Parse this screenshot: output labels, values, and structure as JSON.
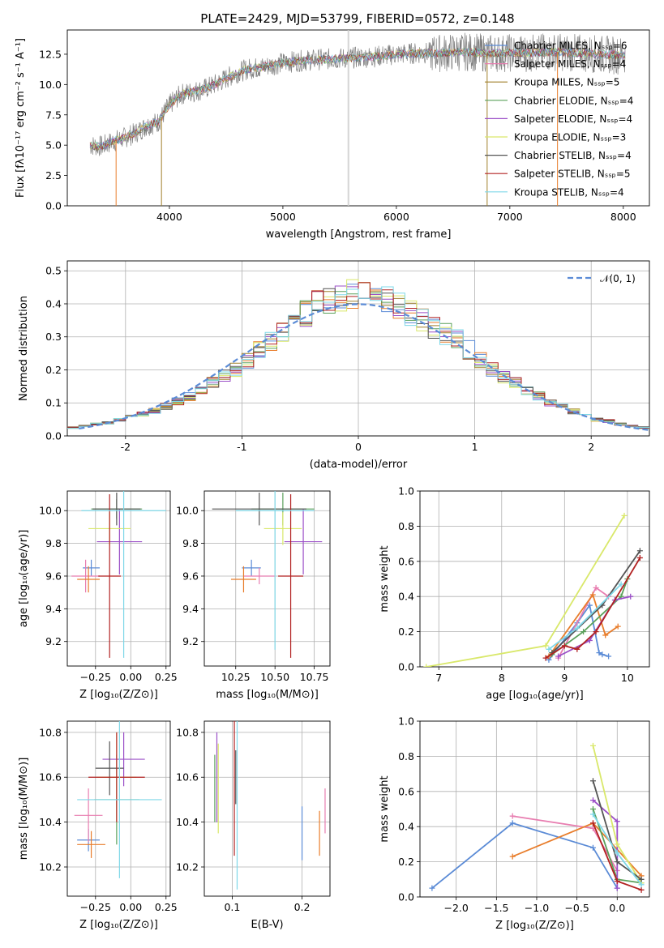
{
  "figure": {
    "title": "PLATE=2429, MJD=53799, FIBERID=0572, z=0.148"
  },
  "colors": {
    "c0": "#5b8bd6",
    "c1": "#e87d2b",
    "c2": "#a0802c",
    "c3": "#5aa05a",
    "c4": "#9b4fc7",
    "c5": "#d9e86a",
    "c6": "#555555",
    "c7": "#b22222",
    "c8": "#7fd8e8",
    "salpeter_miles": "#e87db0",
    "gauss": "#5b8bd6"
  },
  "chart_data": [
    {
      "type": "line",
      "name": "spectrum",
      "xlabel": "wavelength [Angstrom, rest frame]",
      "ylabel": "Flux [fλ10⁻¹⁷ erg cm⁻² s⁻¹ A⁻¹]",
      "xlim": [
        3100,
        8230
      ],
      "ylim": [
        0,
        14.5
      ],
      "xticks": [
        4000,
        5000,
        6000,
        7000,
        8000
      ],
      "yticks": [
        0.0,
        2.5,
        5.0,
        7.5,
        10.0,
        12.5
      ],
      "legend_position": "top-right",
      "data_envelope": {
        "x": [
          3300,
          3400,
          3500,
          3600,
          3700,
          3800,
          3900,
          4000,
          4100,
          4200,
          4300,
          4400,
          4500,
          4600,
          4700,
          4800,
          4900,
          5000,
          5200,
          5400,
          5600,
          5800,
          6000,
          6200,
          6400,
          6600,
          6800,
          7000,
          7200,
          7400,
          7600,
          7800,
          8000
        ],
        "y": [
          5.0,
          4.9,
          5.3,
          5.6,
          6.0,
          6.6,
          6.9,
          8.3,
          9.2,
          9.4,
          9.6,
          10.0,
          10.5,
          11.0,
          11.3,
          11.4,
          11.6,
          11.8,
          12.0,
          12.1,
          12.2,
          12.3,
          12.5,
          12.6,
          12.6,
          12.7,
          12.6,
          12.6,
          12.6,
          12.7,
          12.6,
          12.5,
          12.4
        ]
      },
      "series": [
        {
          "name": "Chabrier MILES, N_SSP=6",
          "color": "#5b8bd6"
        },
        {
          "name": "Salpeter MILES, N_SSP=4",
          "color": "#e87db0"
        },
        {
          "name": "Kroupa MILES, N_SSP=5",
          "color": "#a0802c"
        },
        {
          "name": "Chabrier ELODIE, N_SSP=4",
          "color": "#5aa05a"
        },
        {
          "name": "Salpeter ELODIE, N_SSP=4",
          "color": "#9b4fc7"
        },
        {
          "name": "Kroupa ELODIE, N_SSP=3",
          "color": "#d9e86a"
        },
        {
          "name": "Chabrier STELIB, N_SSP=4",
          "color": "#555555"
        },
        {
          "name": "Salpeter STELIB, N_SSP=5",
          "color": "#b22222"
        },
        {
          "name": "Kroupa STELIB, N_SSP=4",
          "color": "#7fd8e8"
        }
      ]
    },
    {
      "type": "line",
      "name": "residual-histogram",
      "xlabel": "(data-model)/error",
      "ylabel": "Normed distribution",
      "xlim": [
        -2.5,
        2.5
      ],
      "ylim": [
        0,
        0.53
      ],
      "xticks": [
        -2,
        -1,
        0,
        1,
        2
      ],
      "yticks": [
        0.0,
        0.1,
        0.2,
        0.3,
        0.4,
        0.5
      ],
      "grid": true,
      "legend_position": "top-right",
      "gauss_label": "𝒩(0, 1)",
      "bins": [
        -2.5,
        -2.4,
        -2.3,
        -2.2,
        -2.1,
        -2.0,
        -1.9,
        -1.8,
        -1.7,
        -1.6,
        -1.5,
        -1.4,
        -1.3,
        -1.2,
        -1.1,
        -1.0,
        -0.9,
        -0.8,
        -0.7,
        -0.6,
        -0.5,
        -0.4,
        -0.3,
        -0.2,
        -0.1,
        0.0,
        0.1,
        0.2,
        0.3,
        0.4,
        0.5,
        0.6,
        0.7,
        0.8,
        0.9,
        1.0,
        1.1,
        1.2,
        1.3,
        1.4,
        1.5,
        1.6,
        1.7,
        1.8,
        1.9,
        2.0,
        2.1,
        2.2,
        2.3,
        2.4
      ],
      "hist_envelope": [
        0.025,
        0.03,
        0.035,
        0.04,
        0.05,
        0.06,
        0.065,
        0.075,
        0.09,
        0.105,
        0.12,
        0.14,
        0.16,
        0.18,
        0.2,
        0.23,
        0.26,
        0.29,
        0.31,
        0.34,
        0.37,
        0.4,
        0.41,
        0.42,
        0.43,
        0.43,
        0.42,
        0.41,
        0.39,
        0.37,
        0.35,
        0.33,
        0.31,
        0.29,
        0.26,
        0.23,
        0.2,
        0.18,
        0.16,
        0.14,
        0.12,
        0.1,
        0.09,
        0.075,
        0.06,
        0.05,
        0.045,
        0.035,
        0.03,
        0.025
      ]
    },
    {
      "type": "scatter",
      "name": "age-vs-Z",
      "xlabel": "Z [log₁₀(Z/Z⊙)]",
      "ylabel": "age  [log₁₀(age/yr)]",
      "xlim": [
        -0.45,
        0.28
      ],
      "ylim": [
        9.05,
        10.12
      ],
      "xticks": [
        -0.25,
        0.0,
        0.25
      ],
      "xticklabels": [
        "−0.25",
        "0.00",
        "0.25"
      ],
      "yticks": [
        9.2,
        9.4,
        9.6,
        9.8,
        10.0
      ],
      "grid": true,
      "points": [
        {
          "x": -0.28,
          "y": 9.65,
          "xerr": 0.06,
          "yerr": 0.05,
          "color": "#5b8bd6"
        },
        {
          "x": -0.32,
          "y": 9.6,
          "xerr": 0.1,
          "yerr": 0.1,
          "color": "#e87db0"
        },
        {
          "x": -0.3,
          "y": 9.58,
          "xerr": 0.08,
          "yerr": 0.08,
          "color": "#e87d2b"
        },
        {
          "x": -0.1,
          "y": 10.01,
          "xerr": 0.18,
          "yerr": 0.06,
          "color": "#5aa05a"
        },
        {
          "x": -0.08,
          "y": 9.81,
          "xerr": 0.16,
          "yerr": 0.2,
          "color": "#9b4fc7"
        },
        {
          "x": -0.15,
          "y": 9.89,
          "xerr": 0.15,
          "yerr": 0.1,
          "color": "#d9e86a"
        },
        {
          "x": -0.1,
          "y": 10.01,
          "xerr": 0.17,
          "yerr": 0.1,
          "color": "#555555"
        },
        {
          "x": -0.15,
          "y": 9.6,
          "xerr": 0.08,
          "yerr": 0.5,
          "color": "#b22222"
        },
        {
          "x": -0.05,
          "y": 10.0,
          "xerr": 0.3,
          "yerr": 0.9,
          "color": "#7fd8e8"
        }
      ]
    },
    {
      "type": "scatter",
      "name": "age-vs-mass",
      "xlabel": "mass [log₁₀(M/M⊙)]",
      "ylabel": "",
      "xlim": [
        10.05,
        10.85
      ],
      "ylim": [
        9.05,
        10.12
      ],
      "xticks": [
        10.25,
        10.5,
        10.75
      ],
      "xticklabels": [
        "10.25",
        "10.50",
        "10.75"
      ],
      "yticks": [
        9.2,
        9.4,
        9.6,
        9.8,
        10.0
      ],
      "grid": true,
      "points": [
        {
          "x": 10.35,
          "y": 9.65,
          "xerr": 0.06,
          "yerr": 0.05,
          "color": "#5b8bd6"
        },
        {
          "x": 10.4,
          "y": 9.6,
          "xerr": 0.1,
          "yerr": 0.05,
          "color": "#e87db0"
        },
        {
          "x": 10.3,
          "y": 9.58,
          "xerr": 0.08,
          "yerr": 0.08,
          "color": "#e87d2b"
        },
        {
          "x": 10.55,
          "y": 10.01,
          "xerr": 0.2,
          "yerr": 0.1,
          "color": "#5aa05a"
        },
        {
          "x": 10.68,
          "y": 9.81,
          "xerr": 0.12,
          "yerr": 0.2,
          "color": "#9b4fc7"
        },
        {
          "x": 10.55,
          "y": 9.89,
          "xerr": 0.12,
          "yerr": 0.1,
          "color": "#d9e86a"
        },
        {
          "x": 10.4,
          "y": 10.01,
          "xerr": 0.3,
          "yerr": 0.1,
          "color": "#555555"
        },
        {
          "x": 10.6,
          "y": 9.6,
          "xerr": 0.08,
          "yerr": 0.5,
          "color": "#b22222"
        },
        {
          "x": 10.5,
          "y": 10.0,
          "xerr": 0.25,
          "yerr": 0.85,
          "color": "#7fd8e8"
        }
      ]
    },
    {
      "type": "line",
      "name": "mass-weight-vs-age",
      "xlabel": "age  [log₁₀(age/yr)]",
      "ylabel": "mass weight",
      "xlim": [
        6.7,
        10.35
      ],
      "ylim": [
        0,
        1.0
      ],
      "xticks": [
        7,
        8,
        9,
        10
      ],
      "yticks": [
        0.0,
        0.2,
        0.4,
        0.6,
        0.8,
        1.0
      ],
      "grid": true,
      "series": [
        {
          "color": "#5b8bd6",
          "x": [
            8.75,
            9.2,
            9.4,
            9.55,
            9.6,
            9.7
          ],
          "y": [
            0.04,
            0.25,
            0.35,
            0.08,
            0.07,
            0.06
          ]
        },
        {
          "color": "#e87db0",
          "x": [
            8.9,
            9.5,
            9.7
          ],
          "y": [
            0.05,
            0.45,
            0.4
          ]
        },
        {
          "color": "#e87d2b",
          "x": [
            8.75,
            9.45,
            9.65,
            9.85
          ],
          "y": [
            0.06,
            0.41,
            0.18,
            0.23
          ]
        },
        {
          "color": "#5aa05a",
          "x": [
            8.8,
            9.3,
            9.9,
            10.0
          ],
          "y": [
            0.07,
            0.2,
            0.4,
            0.5
          ]
        },
        {
          "color": "#9b4fc7",
          "x": [
            8.9,
            9.4,
            9.8,
            10.05
          ],
          "y": [
            0.06,
            0.15,
            0.38,
            0.4
          ]
        },
        {
          "color": "#d9e86a",
          "x": [
            6.8,
            8.7,
            9.95
          ],
          "y": [
            0.0,
            0.12,
            0.86
          ]
        },
        {
          "color": "#555555",
          "x": [
            8.8,
            9.6,
            10.2
          ],
          "y": [
            0.08,
            0.35,
            0.66
          ]
        },
        {
          "color": "#b22222",
          "x": [
            8.7,
            9.0,
            9.2,
            9.5,
            10.2
          ],
          "y": [
            0.05,
            0.12,
            0.1,
            0.2,
            0.62
          ]
        },
        {
          "color": "#7fd8e8",
          "x": [
            8.75,
            9.2,
            9.9
          ],
          "y": [
            0.1,
            0.22,
            0.47
          ]
        }
      ]
    },
    {
      "type": "scatter",
      "name": "mass-vs-Z",
      "xlabel": "Z [log₁₀(Z/Z⊙)]",
      "ylabel": "mass [log₁₀(M/M⊙)]",
      "xlim": [
        -0.45,
        0.28
      ],
      "ylim": [
        10.07,
        10.85
      ],
      "xticks": [
        -0.25,
        0.0,
        0.25
      ],
      "xticklabels": [
        "−0.25",
        "0.00",
        "0.25"
      ],
      "yticks": [
        10.2,
        10.4,
        10.6,
        10.8
      ],
      "grid": true,
      "points": [
        {
          "x": -0.3,
          "y": 10.32,
          "xerr": 0.08,
          "yerr": 0.05,
          "color": "#5b8bd6"
        },
        {
          "x": -0.3,
          "y": 10.43,
          "xerr": 0.1,
          "yerr": 0.12,
          "color": "#e87db0"
        },
        {
          "x": -0.28,
          "y": 10.3,
          "xerr": 0.1,
          "yerr": 0.06,
          "color": "#e87d2b"
        },
        {
          "x": -0.1,
          "y": 10.5,
          "xerr": 0.16,
          "yerr": 0.2,
          "color": "#5aa05a"
        },
        {
          "x": -0.05,
          "y": 10.68,
          "xerr": 0.15,
          "yerr": 0.12,
          "color": "#9b4fc7"
        },
        {
          "x": -0.1,
          "y": 10.6,
          "xerr": 0.14,
          "yerr": 0.2,
          "color": "#d9e86a"
        },
        {
          "x": -0.15,
          "y": 10.64,
          "xerr": 0.1,
          "yerr": 0.12,
          "color": "#555555"
        },
        {
          "x": -0.1,
          "y": 10.6,
          "xerr": 0.2,
          "yerr": 0.2,
          "color": "#b22222"
        },
        {
          "x": -0.08,
          "y": 10.5,
          "xerr": 0.3,
          "yerr": 0.35,
          "color": "#7fd8e8"
        }
      ]
    },
    {
      "type": "scatter",
      "name": "mass-vs-EBV",
      "xlabel": "E(B-V)",
      "ylabel": "",
      "xlim": [
        0.06,
        0.24
      ],
      "ylim": [
        10.07,
        10.85
      ],
      "xticks": [
        0.1,
        0.2
      ],
      "xticklabels": [
        "0.1",
        "0.2"
      ],
      "yticks": [
        10.2,
        10.4,
        10.6,
        10.8
      ],
      "grid": true,
      "points": [
        {
          "x": 0.2,
          "y": 10.35,
          "yerr": 0.12,
          "color": "#5b8bd6"
        },
        {
          "x": 0.233,
          "y": 10.45,
          "yerr": 0.1,
          "color": "#e87db0"
        },
        {
          "x": 0.225,
          "y": 10.35,
          "yerr": 0.1,
          "color": "#e87d2b"
        },
        {
          "x": 0.075,
          "y": 10.55,
          "yerr": 0.15,
          "color": "#5aa05a"
        },
        {
          "x": 0.078,
          "y": 10.6,
          "yerr": 0.2,
          "color": "#9b4fc7"
        },
        {
          "x": 0.08,
          "y": 10.55,
          "yerr": 0.2,
          "color": "#d9e86a"
        },
        {
          "x": 0.105,
          "y": 10.6,
          "yerr": 0.12,
          "color": "#555555"
        },
        {
          "x": 0.103,
          "y": 10.55,
          "yerr": 0.3,
          "color": "#b22222"
        },
        {
          "x": 0.107,
          "y": 10.5,
          "yerr": 0.4,
          "color": "#7fd8e8"
        }
      ]
    },
    {
      "type": "line",
      "name": "mass-weight-vs-Z",
      "xlabel": "Z [log₁₀(Z/Z⊙)]",
      "ylabel": "mass weight",
      "xlim": [
        -2.45,
        0.4
      ],
      "ylim": [
        0,
        1.0
      ],
      "xticks": [
        -2.0,
        -1.5,
        -1.0,
        -0.5,
        0.0
      ],
      "xticklabels": [
        "−2.0",
        "−1.5",
        "−1.0",
        "−0.5",
        "0.0"
      ],
      "yticks": [
        0.0,
        0.2,
        0.4,
        0.6,
        0.8,
        1.0
      ],
      "grid": true,
      "series": [
        {
          "color": "#5b8bd6",
          "x": [
            -2.3,
            -1.3,
            -0.3,
            0.0
          ],
          "y": [
            0.05,
            0.42,
            0.28,
            0.05
          ]
        },
        {
          "color": "#e87db0",
          "x": [
            -1.3,
            -0.3,
            0.0
          ],
          "y": [
            0.46,
            0.39,
            0.15
          ]
        },
        {
          "color": "#e87d2b",
          "x": [
            -1.3,
            -0.3,
            0.3
          ],
          "y": [
            0.23,
            0.42,
            0.12
          ]
        },
        {
          "color": "#5aa05a",
          "x": [
            -0.3,
            0.0,
            0.3
          ],
          "y": [
            0.5,
            0.1,
            0.08
          ]
        },
        {
          "color": "#9b4fc7",
          "x": [
            -0.3,
            0.0,
            0.0
          ],
          "y": [
            0.55,
            0.43,
            0.05
          ]
        },
        {
          "color": "#d9e86a",
          "x": [
            -0.3,
            0.0,
            0.3
          ],
          "y": [
            0.86,
            0.3,
            0.08
          ]
        },
        {
          "color": "#555555",
          "x": [
            -0.3,
            0.0,
            0.3
          ],
          "y": [
            0.66,
            0.2,
            0.1
          ]
        },
        {
          "color": "#b22222",
          "x": [
            -0.3,
            0.0,
            0.3
          ],
          "y": [
            0.42,
            0.09,
            0.04
          ]
        },
        {
          "color": "#7fd8e8",
          "x": [
            -0.3,
            0.0,
            0.3
          ],
          "y": [
            0.47,
            0.25,
            0.07
          ]
        }
      ]
    }
  ]
}
